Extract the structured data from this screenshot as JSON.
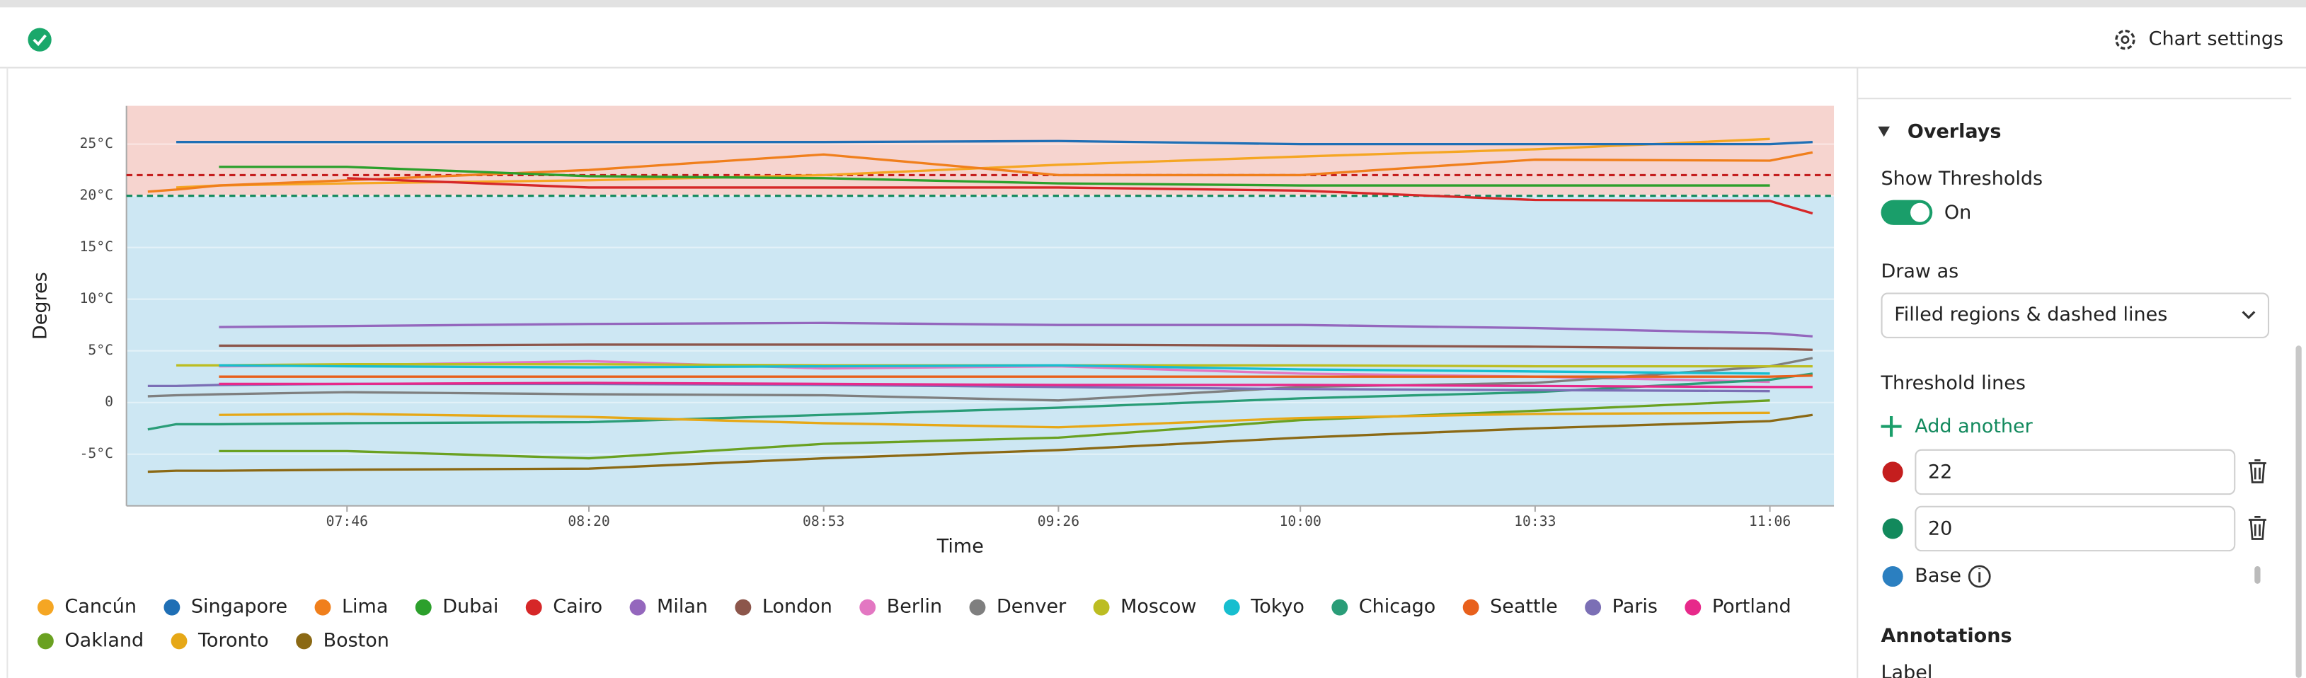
{
  "header": {
    "chart_settings": "Chart settings"
  },
  "chart_data": {
    "type": "line",
    "x_label": "Time",
    "y_label": "Degres",
    "x": [
      "07:18",
      "07:22",
      "07:28",
      "07:46",
      "08:20",
      "08:53",
      "09:26",
      "10:00",
      "10:33",
      "11:06",
      "11:12"
    ],
    "xlim": [
      "07:15",
      "11:15"
    ],
    "xticks": [
      "07:46",
      "08:20",
      "08:53",
      "09:26",
      "10:00",
      "10:33",
      "11:06"
    ],
    "ylim": [
      -10,
      28.7
    ],
    "yticks": [
      {
        "value": 25,
        "label": "25°C"
      },
      {
        "value": 20,
        "label": "20°C"
      },
      {
        "value": 15,
        "label": "15°C"
      },
      {
        "value": 10,
        "label": "10°C"
      },
      {
        "value": 5,
        "label": "5°C"
      },
      0,
      {
        "value": -5,
        "label": "-5°C"
      }
    ],
    "grid": true,
    "legend": "bottom",
    "thresholds": [
      {
        "value": 22,
        "color": "#c41e1e",
        "fill": "#f6d4cf"
      },
      {
        "value": 20,
        "color": "#12895c",
        "fill": "#f6d4cf"
      }
    ],
    "base_color": "#2b7fc0",
    "base_fill": "#cde7f3",
    "series": [
      {
        "name": "Cancún",
        "color": "#f5a623",
        "values": [
          null,
          20.8,
          21,
          21.2,
          21.5,
          22,
          23,
          23.8,
          24.5,
          25.5,
          null
        ]
      },
      {
        "name": "Singapore",
        "color": "#1f6fb5",
        "values": [
          null,
          25.2,
          25.2,
          25.2,
          25.2,
          25.2,
          25.3,
          25,
          25,
          25,
          25.2
        ]
      },
      {
        "name": "Lima",
        "color": "#f07f1c",
        "values": [
          20.4,
          20.6,
          21,
          21.5,
          22.5,
          24,
          22,
          22,
          23.5,
          23.4,
          24.2
        ]
      },
      {
        "name": "Dubai",
        "color": "#2ca02c",
        "values": [
          null,
          null,
          22.8,
          22.8,
          21.9,
          21.7,
          21.2,
          21,
          21,
          21,
          null
        ]
      },
      {
        "name": "Cairo",
        "color": "#d62728",
        "values": [
          null,
          null,
          null,
          21.7,
          20.8,
          20.8,
          20.8,
          20.5,
          19.6,
          19.5,
          18.3
        ]
      },
      {
        "name": "Milan",
        "color": "#9467bd",
        "values": [
          null,
          null,
          7.3,
          7.4,
          7.6,
          7.7,
          7.5,
          7.5,
          7.2,
          6.7,
          6.4
        ]
      },
      {
        "name": "London",
        "color": "#8c564b",
        "values": [
          null,
          null,
          5.5,
          5.5,
          5.6,
          5.6,
          5.6,
          5.5,
          5.4,
          5.2,
          5.1
        ]
      },
      {
        "name": "Berlin",
        "color": "#e377c2",
        "values": [
          null,
          null,
          3.5,
          3.6,
          4,
          3.3,
          3.5,
          2.8,
          2.5,
          2,
          null
        ]
      },
      {
        "name": "Denver",
        "color": "#7f7f7f",
        "values": [
          0.6,
          0.7,
          0.8,
          1,
          0.8,
          0.7,
          0.2,
          1.5,
          1.9,
          3.5,
          4.3
        ]
      },
      {
        "name": "Moscow",
        "color": "#bcbd22",
        "values": [
          null,
          3.6,
          3.6,
          3.7,
          3.7,
          3.6,
          3.6,
          3.6,
          3.5,
          3.5,
          3.5
        ]
      },
      {
        "name": "Tokyo",
        "color": "#17becf",
        "values": [
          null,
          null,
          3.6,
          3.5,
          3.4,
          3.5,
          3.6,
          3.2,
          3,
          2.8,
          null
        ]
      },
      {
        "name": "Chicago",
        "color": "#2a9d78",
        "values": [
          -2.6,
          -2.1,
          -2.1,
          -2,
          -1.9,
          -1.2,
          -0.5,
          0.4,
          1,
          2.2,
          2.8
        ]
      },
      {
        "name": "Seattle",
        "color": "#e8601c",
        "values": [
          null,
          null,
          2.5,
          2.5,
          2.5,
          2.5,
          2.5,
          2.5,
          2.5,
          2.5,
          2.6
        ]
      },
      {
        "name": "Paris",
        "color": "#7b6fb5",
        "values": [
          1.6,
          1.6,
          1.7,
          1.8,
          1.8,
          1.7,
          1.5,
          1.3,
          1.2,
          1.1,
          null
        ]
      },
      {
        "name": "Portland",
        "color": "#e7298a",
        "values": [
          null,
          null,
          1.8,
          1.8,
          1.9,
          1.8,
          1.7,
          1.7,
          1.6,
          1.5,
          1.5
        ]
      },
      {
        "name": "Oakland",
        "color": "#6aa121",
        "values": [
          null,
          null,
          -4.7,
          -4.7,
          -5.4,
          -4,
          -3.4,
          -1.7,
          -0.8,
          0.2,
          null
        ]
      },
      {
        "name": "Toronto",
        "color": "#e6a817",
        "values": [
          null,
          null,
          -1.2,
          -1.1,
          -1.4,
          -2,
          -2.4,
          -1.5,
          -1.1,
          -1,
          null
        ]
      },
      {
        "name": "Boston",
        "color": "#8b6914",
        "values": [
          -6.7,
          -6.6,
          -6.6,
          -6.5,
          -6.4,
          -5.4,
          -4.6,
          -3.4,
          -2.5,
          -1.8,
          -1.2
        ]
      }
    ]
  },
  "settings": {
    "overlays": "Overlays",
    "show_thresholds": "Show Thresholds",
    "toggle": "On",
    "draw_as": "Draw as",
    "draw_as_value": "Filled regions & dashed lines",
    "threshold_lines": "Threshold lines",
    "add_another": "Add another",
    "base": "Base",
    "annotations": "Annotations",
    "label": "Label"
  }
}
